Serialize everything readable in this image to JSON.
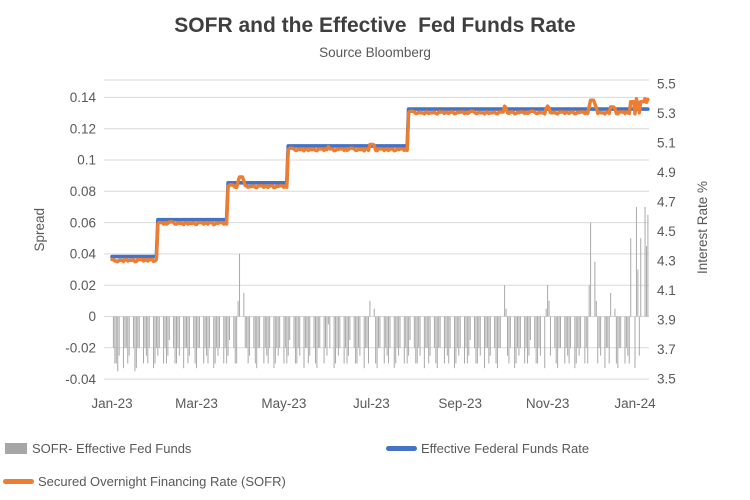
{
  "chart": {
    "title": "SOFR and the Effective  Fed Funds Rate",
    "subtitle": "Source Bloomberg",
    "left_axis_title": "Spread",
    "right_axis_title": "Interest Rate %",
    "colors": {
      "effr_line": "#4472C4",
      "sofr_line": "#ED7D31",
      "spread_bars": "#A9A9A9",
      "gridline": "#D9D9D9",
      "axis_text": "#595959",
      "title_text": "#3F3F3F",
      "legend_bar_swatch": "#A6A6A6"
    },
    "legend": {
      "spread_label": "SOFR- Effective Fed Funds",
      "effr_label": "Effective Federal Funds Rate",
      "sofr_label": "Secured Overnight Financing Rate (SOFR)"
    }
  },
  "chart_data": {
    "type": "combo-bar-line",
    "x_axis": {
      "start_date": "2023-01-01",
      "days": 375,
      "tick_labels": [
        "Jan-23",
        "Mar-23",
        "May-23",
        "Jul-23",
        "Sep-23",
        "Nov-23",
        "Jan-24"
      ],
      "tick_days": [
        0,
        59,
        120,
        181,
        243,
        304,
        365
      ],
      "weekend_gaps": true
    },
    "left_axis": {
      "label": "Spread",
      "ticks": [
        0.14,
        0.12,
        0.1,
        0.08,
        0.06,
        0.04,
        0.02,
        0,
        -0.02,
        -0.04
      ],
      "max": 0.14,
      "min": -0.04
    },
    "right_axis": {
      "label": "Interest Rate %",
      "ticks": [
        5.5,
        5.3,
        5.1,
        4.9,
        4.7,
        4.5,
        4.3,
        4.1,
        3.9,
        3.7,
        3.5
      ],
      "max": 5.5,
      "min": 3.5
    },
    "series": [
      {
        "name": "SOFR- Effective Fed Funds",
        "type": "bar",
        "axis": "left",
        "definition": "daily SOFR minus EFFR spread"
      },
      {
        "name": "Effective Federal Funds Rate",
        "type": "line",
        "axis": "right",
        "steps": [
          [
            0,
            4.33
          ],
          [
            32,
            4.58
          ],
          [
            81,
            4.83
          ],
          [
            123,
            5.08
          ],
          [
            207,
            5.33
          ]
        ]
      },
      {
        "name": "Secured Overnight Financing Rate (SOFR)",
        "type": "line",
        "axis": "right",
        "definition": "EFFR + spread"
      }
    ],
    "spread": {
      "weekday_base_pattern": [
        -0.02,
        -0.03,
        -0.03,
        -0.02,
        -0.025,
        -0.033,
        -0.02,
        -0.02,
        -0.03,
        -0.025,
        -0.02,
        -0.03,
        -0.033,
        -0.02,
        -0.02,
        -0.03,
        -0.02,
        -0.025,
        -0.03,
        -0.02,
        -0.033,
        -0.03,
        -0.02,
        -0.025,
        -0.02,
        -0.03,
        -0.02,
        -0.03,
        -0.025,
        -0.015
      ],
      "event_days": {
        "4": -0.035,
        "16": -0.035,
        "88": 0.01,
        "89": 0.04,
        "92": 0.015,
        "151": -0.005,
        "180": 0.01,
        "183": 0.005,
        "274": 0.02,
        "275": 0.005,
        "303": 0.005,
        "304": 0.02,
        "305": 0.01,
        "333": 0.02,
        "334": 0.06,
        "337": 0.035,
        "338": 0.01,
        "348": 0.015,
        "351": 0.005,
        "362": 0.05,
        "366": 0.07,
        "367": 0.03,
        "369": 0.05,
        "372": 0.07,
        "373": 0.045,
        "374": 0.065
      }
    }
  }
}
